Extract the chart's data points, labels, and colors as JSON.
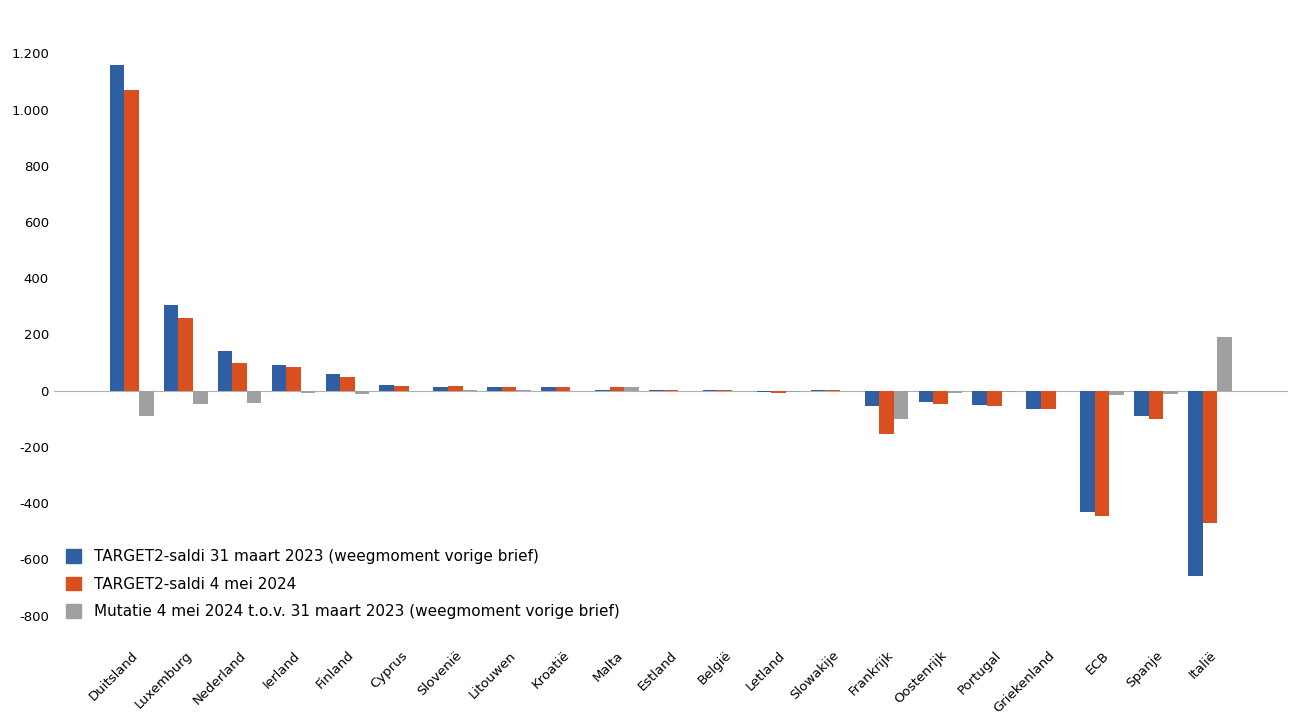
{
  "categories": [
    "Duitsland",
    "Luxemburg",
    "Nederland",
    "Ierland",
    "Finland",
    "Cyprus",
    "Slovenië",
    "Litouwen",
    "Kroatië",
    "Malta",
    "Estland",
    "België",
    "Letland",
    "Slowakije",
    "Frankrijk",
    "Oostenrijk",
    "Portugal",
    "Griekenland",
    "ECB",
    "Spanje",
    "Italië"
  ],
  "series1": [
    1160,
    305,
    143,
    90,
    60,
    20,
    15,
    12,
    15,
    2,
    2,
    3,
    -5,
    3,
    -55,
    -40,
    -50,
    -65,
    -430,
    -90,
    -660
  ],
  "series2": [
    1070,
    258,
    100,
    83,
    48,
    18,
    17,
    15,
    14,
    14,
    2,
    3,
    -8,
    2,
    -155,
    -47,
    -55,
    -65,
    -445,
    -100,
    -470
  ],
  "series3": [
    -90,
    -47,
    -43,
    -7,
    -12,
    -2,
    2,
    3,
    -1,
    12,
    0,
    0,
    -3,
    -1,
    -100,
    -7,
    -5,
    0,
    -15,
    -10,
    190
  ],
  "color1": "#2E5FA3",
  "color2": "#D94F1E",
  "color3": "#A0A0A0",
  "legend1": "TARGET2-saldi 31 maart 2023 (weegmoment vorige brief)",
  "legend2": "TARGET2-saldi 4 mei 2024",
  "legend3": "Mutatie 4 mei 2024 t.o.v. 31 maart 2023 (weegmoment vorige brief)",
  "ylim": [
    -900,
    1350
  ],
  "yticks": [
    -800,
    -600,
    -400,
    -200,
    0,
    200,
    400,
    600,
    800,
    1000,
    1200
  ],
  "background_color": "#ffffff",
  "bar_width": 0.27,
  "tick_label_fontsize": 9.5,
  "legend_fontsize": 11
}
